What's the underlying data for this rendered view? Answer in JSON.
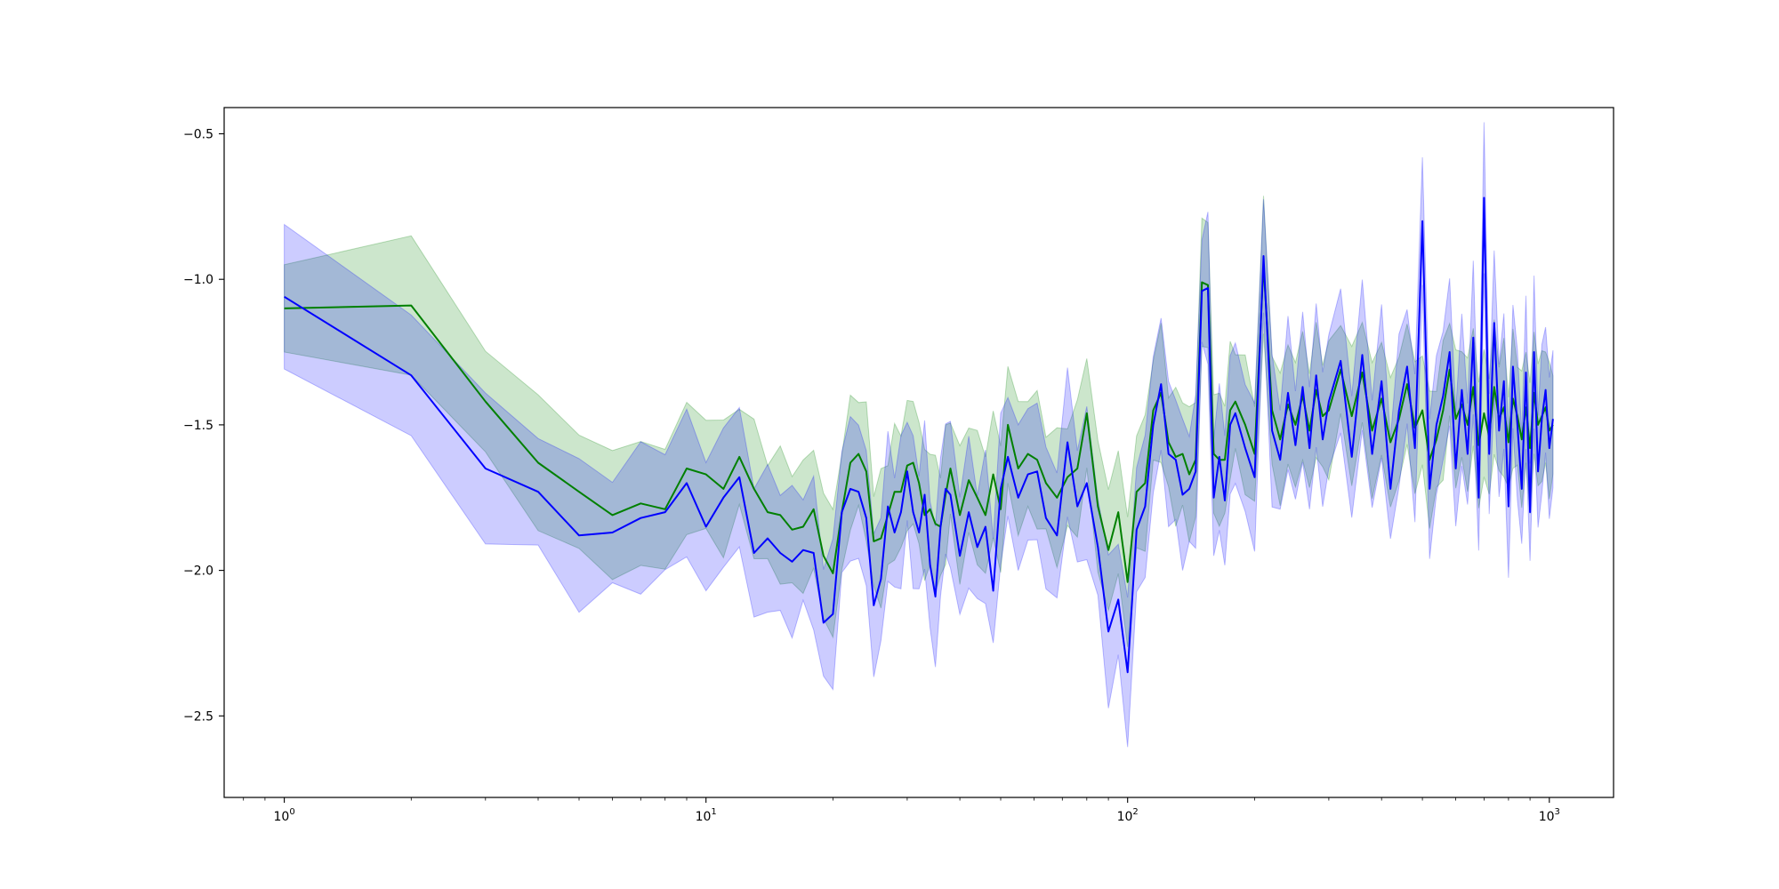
{
  "chart_data": {
    "type": "line",
    "title": "",
    "xlabel": "",
    "ylabel": "",
    "x_scale": "log",
    "xlim": [
      0.72,
      1420
    ],
    "ylim": [
      -2.78,
      -0.41
    ],
    "grid": false,
    "legend": false,
    "x_ticks": [
      {
        "value": 1,
        "base": "10",
        "exp": "0"
      },
      {
        "value": 10,
        "base": "10",
        "exp": "1"
      },
      {
        "value": 100,
        "base": "10",
        "exp": "2"
      },
      {
        "value": 1000,
        "base": "10",
        "exp": "3"
      }
    ],
    "y_ticks": [
      {
        "value": -0.5,
        "label": "−0.5"
      },
      {
        "value": -1.0,
        "label": "−1.0"
      },
      {
        "value": -1.5,
        "label": "−1.5"
      },
      {
        "value": -2.0,
        "label": "−2.0"
      },
      {
        "value": -2.5,
        "label": "−2.5"
      }
    ],
    "series": [
      {
        "color": "#008000",
        "band_color": "#008000",
        "band_opacity": 0.2,
        "band_width": 0.2,
        "x": [
          1,
          2,
          3,
          4,
          5,
          6,
          7,
          8,
          9,
          10,
          11,
          12,
          13,
          14,
          15,
          16,
          17,
          18,
          19,
          20,
          21,
          22,
          23,
          24,
          25,
          26,
          27,
          28,
          29,
          30,
          31,
          32,
          33,
          34,
          35,
          36,
          37,
          38,
          40,
          42,
          44,
          46,
          48,
          50,
          52,
          55,
          58,
          61,
          64,
          68,
          72,
          76,
          80,
          85,
          90,
          95,
          100,
          105,
          110,
          115,
          120,
          125,
          130,
          135,
          140,
          145,
          150,
          155,
          160,
          165,
          170,
          175,
          180,
          190,
          200,
          210,
          220,
          230,
          240,
          250,
          260,
          270,
          280,
          290,
          300,
          320,
          340,
          360,
          380,
          400,
          420,
          440,
          460,
          480,
          500,
          520,
          540,
          560,
          580,
          600,
          620,
          640,
          660,
          680,
          700,
          720,
          740,
          760,
          780,
          800,
          820,
          840,
          860,
          880,
          900,
          920,
          940,
          960,
          980,
          1000,
          1020
        ],
        "y": [
          -1.1,
          -1.09,
          -1.42,
          -1.63,
          -1.73,
          -1.81,
          -1.77,
          -1.79,
          -1.65,
          -1.67,
          -1.72,
          -1.61,
          -1.72,
          -1.8,
          -1.81,
          -1.86,
          -1.85,
          -1.79,
          -1.95,
          -2.01,
          -1.8,
          -1.63,
          -1.6,
          -1.66,
          -1.9,
          -1.89,
          -1.81,
          -1.73,
          -1.73,
          -1.64,
          -1.63,
          -1.7,
          -1.81,
          -1.79,
          -1.84,
          -1.85,
          -1.74,
          -1.65,
          -1.81,
          -1.69,
          -1.75,
          -1.81,
          -1.67,
          -1.79,
          -1.5,
          -1.65,
          -1.6,
          -1.62,
          -1.7,
          -1.75,
          -1.68,
          -1.65,
          -1.46,
          -1.78,
          -1.93,
          -1.8,
          -2.04,
          -1.73,
          -1.7,
          -1.45,
          -1.39,
          -1.56,
          -1.61,
          -1.6,
          -1.67,
          -1.62,
          -1.01,
          -1.02,
          -1.6,
          -1.62,
          -1.62,
          -1.45,
          -1.42,
          -1.5,
          -1.6,
          -0.95,
          -1.45,
          -1.55,
          -1.43,
          -1.5,
          -1.4,
          -1.52,
          -1.38,
          -1.47,
          -1.45,
          -1.31,
          -1.47,
          -1.32,
          -1.52,
          -1.41,
          -1.56,
          -1.48,
          -1.36,
          -1.51,
          -1.45,
          -1.62,
          -1.55,
          -1.45,
          -1.31,
          -1.48,
          -1.43,
          -1.5,
          -1.37,
          -1.57,
          -1.46,
          -1.54,
          -1.37,
          -1.48,
          -1.44,
          -1.56,
          -1.41,
          -1.47,
          -1.55,
          -1.44,
          -1.58,
          -1.39,
          -1.5,
          -1.47,
          -1.44,
          -1.52,
          -1.5
        ]
      },
      {
        "color": "#0000ff",
        "band_color": "#0000ff",
        "band_opacity": 0.2,
        "band_width": 0.22,
        "x": [
          1,
          2,
          3,
          4,
          5,
          6,
          7,
          8,
          9,
          10,
          11,
          12,
          13,
          14,
          15,
          16,
          17,
          18,
          19,
          20,
          21,
          22,
          23,
          24,
          25,
          26,
          27,
          28,
          29,
          30,
          31,
          32,
          33,
          34,
          35,
          36,
          37,
          38,
          40,
          42,
          44,
          46,
          48,
          50,
          52,
          55,
          58,
          61,
          64,
          68,
          72,
          76,
          80,
          85,
          90,
          95,
          100,
          105,
          110,
          115,
          120,
          125,
          130,
          135,
          140,
          145,
          150,
          155,
          160,
          165,
          170,
          175,
          180,
          190,
          200,
          210,
          220,
          230,
          240,
          250,
          260,
          270,
          280,
          290,
          300,
          320,
          340,
          360,
          380,
          400,
          420,
          440,
          460,
          480,
          500,
          520,
          540,
          560,
          580,
          600,
          620,
          640,
          660,
          680,
          700,
          720,
          740,
          760,
          780,
          800,
          820,
          840,
          860,
          880,
          900,
          920,
          940,
          960,
          980,
          1000,
          1020
        ],
        "y": [
          -1.06,
          -1.33,
          -1.65,
          -1.73,
          -1.88,
          -1.87,
          -1.82,
          -1.8,
          -1.7,
          -1.85,
          -1.75,
          -1.68,
          -1.94,
          -1.89,
          -1.94,
          -1.97,
          -1.93,
          -1.94,
          -2.18,
          -2.15,
          -1.8,
          -1.72,
          -1.73,
          -1.82,
          -2.12,
          -2.03,
          -1.78,
          -1.87,
          -1.8,
          -1.66,
          -1.8,
          -1.87,
          -1.74,
          -1.98,
          -2.09,
          -1.85,
          -1.72,
          -1.74,
          -1.95,
          -1.8,
          -1.92,
          -1.85,
          -2.07,
          -1.72,
          -1.61,
          -1.75,
          -1.67,
          -1.66,
          -1.82,
          -1.88,
          -1.56,
          -1.78,
          -1.7,
          -1.92,
          -2.21,
          -2.1,
          -2.35,
          -1.86,
          -1.78,
          -1.5,
          -1.36,
          -1.6,
          -1.62,
          -1.74,
          -1.72,
          -1.66,
          -1.04,
          -1.03,
          -1.75,
          -1.61,
          -1.76,
          -1.5,
          -1.46,
          -1.58,
          -1.68,
          -0.92,
          -1.52,
          -1.62,
          -1.39,
          -1.57,
          -1.37,
          -1.58,
          -1.33,
          -1.55,
          -1.42,
          -1.28,
          -1.61,
          -1.26,
          -1.6,
          -1.35,
          -1.72,
          -1.45,
          -1.3,
          -1.58,
          -0.8,
          -1.72,
          -1.5,
          -1.4,
          -1.25,
          -1.65,
          -1.38,
          -1.6,
          -1.2,
          -1.75,
          -0.72,
          -1.6,
          -1.15,
          -1.52,
          -1.35,
          -1.78,
          -1.3,
          -1.5,
          -1.72,
          -1.32,
          -1.8,
          -1.25,
          -1.66,
          -1.48,
          -1.38,
          -1.58,
          -1.48
        ]
      }
    ]
  }
}
